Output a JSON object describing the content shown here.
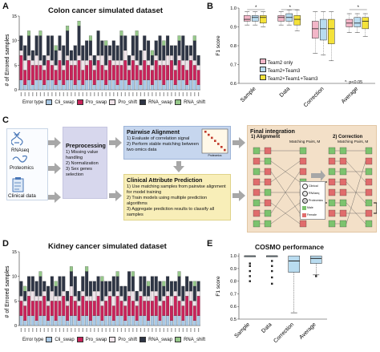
{
  "panels": {
    "A": "A",
    "B": "B",
    "C": "C",
    "D": "D",
    "E": "E"
  },
  "colors": {
    "cli_swap": "#a9c9e6",
    "pro_swap": "#c8235a",
    "pro_shift": "#f0e4ea",
    "rna_swap": "#2e3545",
    "rna_shift": "#96c88a",
    "team2": "#f3b6c8",
    "team23": "#b9dcf0",
    "team123": "#f4e23a"
  },
  "panel_a": {
    "title": "Colon cancer simulated dataset",
    "ylabel": "# of Errored samples",
    "error_type_label": "Error type",
    "legend": [
      "Cli_swap",
      "Pro_swap",
      "Pro_shift",
      "RNA_swap",
      "RNA_shift"
    ]
  },
  "panel_d": {
    "title": "Kidney cancer simulated dataset",
    "ylabel": "# of Errored samples",
    "error_type_label": "Error type",
    "legend": [
      "Cli_swap",
      "Pro_swap",
      "Pro_shift",
      "RNA_swap",
      "RNA_shift"
    ]
  },
  "panel_b": {
    "ylabel": "F1 score",
    "legend": [
      "Team2 only",
      "Team2+Team3",
      "Team2+Team1+Team3"
    ],
    "note": "*: p<0.05"
  },
  "panel_c": {
    "inputs": [
      "RNAseq",
      "Proteomics",
      "Clinical data"
    ],
    "preprocessing": {
      "title": "Preprocessing",
      "steps": [
        "1) Missing value handling",
        "2) Normalization",
        "3) Sex genes selection"
      ]
    },
    "pairwise": {
      "title": "Pairwise Alignment",
      "steps": [
        "1) Evaluate of correlation signal",
        "2) Perform stable matching between two omics data"
      ],
      "mini_x": "Proteomics",
      "mini_y": "RNAseq"
    },
    "clinical": {
      "title": "Clinical Attribute Prediction",
      "steps": [
        "1) Use matching samples from pairwise alignment for model training",
        "2) Train models using multiple prediction algorithms",
        "3) Aggregate prediction results to classify all samples"
      ]
    },
    "final": {
      "title": "Final integration",
      "alignment": "1) Alignment",
      "correction": "2) Correction",
      "matching": "Matching Pairs, M",
      "legend": [
        "Clinical",
        "RNAseq",
        "Proteomics",
        "Male",
        "Female"
      ]
    }
  },
  "panel_e": {
    "title": "COSMO performance",
    "ylabel": "F1 score"
  },
  "chart_data": [
    {
      "type": "bar",
      "title": "Colon cancer simulated dataset",
      "ylabel": "# of Errored samples",
      "ylim": [
        0,
        15
      ],
      "yticks": [
        0,
        5,
        10,
        15
      ],
      "stacked": true,
      "series_names": [
        "Cli_swap",
        "Pro_swap",
        "Pro_shift",
        "RNA_swap",
        "RNA_shift"
      ],
      "n_bars": 47,
      "values": [
        [
          2,
          5,
          1,
          3,
          0
        ],
        [
          1,
          3,
          2,
          3,
          0
        ],
        [
          2,
          4,
          1,
          4,
          1
        ],
        [
          1,
          4,
          1,
          2,
          0
        ],
        [
          2,
          3,
          2,
          4,
          0
        ],
        [
          2,
          3,
          1,
          5,
          1
        ],
        [
          1,
          3,
          1,
          2,
          0
        ],
        [
          2,
          4,
          1,
          4,
          0
        ],
        [
          2,
          3,
          1,
          5,
          0
        ],
        [
          1,
          3,
          1,
          3,
          1
        ],
        [
          2,
          4,
          2,
          3,
          0
        ],
        [
          1,
          3,
          1,
          4,
          0
        ],
        [
          2,
          4,
          1,
          5,
          1
        ],
        [
          2,
          3,
          1,
          2,
          0
        ],
        [
          1,
          4,
          1,
          3,
          0
        ],
        [
          2,
          4,
          1,
          6,
          1
        ],
        [
          1,
          3,
          2,
          3,
          0
        ],
        [
          2,
          3,
          1,
          4,
          0
        ],
        [
          2,
          4,
          1,
          3,
          1
        ],
        [
          1,
          3,
          1,
          2,
          0
        ],
        [
          2,
          4,
          1,
          5,
          0
        ],
        [
          2,
          3,
          2,
          3,
          0
        ],
        [
          1,
          3,
          1,
          4,
          1
        ],
        [
          2,
          4,
          1,
          2,
          0
        ],
        [
          2,
          3,
          1,
          4,
          0
        ],
        [
          1,
          4,
          1,
          3,
          0
        ],
        [
          2,
          3,
          1,
          5,
          1
        ],
        [
          2,
          4,
          2,
          3,
          0
        ],
        [
          1,
          3,
          1,
          2,
          0
        ],
        [
          2,
          4,
          1,
          4,
          0
        ],
        [
          2,
          3,
          1,
          5,
          1
        ],
        [
          1,
          3,
          1,
          3,
          0
        ],
        [
          2,
          4,
          2,
          3,
          0
        ],
        [
          2,
          3,
          1,
          4,
          0
        ],
        [
          1,
          3,
          1,
          2,
          1
        ],
        [
          2,
          4,
          1,
          3,
          0
        ],
        [
          2,
          3,
          1,
          5,
          0
        ],
        [
          1,
          4,
          1,
          3,
          1
        ],
        [
          2,
          3,
          2,
          4,
          0
        ],
        [
          2,
          4,
          1,
          2,
          0
        ],
        [
          1,
          3,
          1,
          4,
          0
        ],
        [
          2,
          4,
          1,
          3,
          1
        ],
        [
          2,
          3,
          1,
          5,
          0
        ],
        [
          1,
          3,
          2,
          3,
          0
        ],
        [
          2,
          4,
          1,
          2,
          0
        ],
        [
          2,
          3,
          1,
          4,
          1
        ],
        [
          1,
          3,
          1,
          2,
          0
        ]
      ]
    },
    {
      "type": "box",
      "ylabel": "F1 score",
      "ylim": [
        0.6,
        1.0
      ],
      "yticks": [
        0.6,
        0.7,
        0.8,
        0.9,
        1.0
      ],
      "categories": [
        "Sample",
        "Data",
        "Correction",
        "Average"
      ],
      "series": [
        {
          "name": "Team2 only",
          "boxes": [
            [
              0.91,
              0.93,
              0.94,
              0.96,
              0.98
            ],
            [
              0.91,
              0.93,
              0.95,
              0.96,
              0.98
            ],
            [
              0.76,
              0.84,
              0.89,
              0.93,
              0.98
            ],
            [
              0.87,
              0.9,
              0.92,
              0.94,
              0.97
            ]
          ]
        },
        {
          "name": "Team2+Team3",
          "boxes": [
            [
              0.91,
              0.93,
              0.95,
              0.96,
              0.98
            ],
            [
              0.91,
              0.93,
              0.95,
              0.97,
              0.99
            ],
            [
              0.75,
              0.83,
              0.89,
              0.94,
              0.98
            ],
            [
              0.87,
              0.9,
              0.92,
              0.95,
              0.97
            ]
          ]
        },
        {
          "name": "Team2+Team1+Team3",
          "boxes": [
            [
              0.9,
              0.92,
              0.95,
              0.96,
              0.98
            ],
            [
              0.88,
              0.91,
              0.94,
              0.96,
              0.99
            ],
            [
              0.72,
              0.81,
              0.89,
              0.94,
              0.98
            ],
            [
              0.85,
              0.89,
              0.93,
              0.95,
              0.97
            ]
          ]
        }
      ],
      "significance": [
        "*",
        "*",
        "",
        "*"
      ],
      "note": "*: p<0.05"
    },
    {
      "type": "bar",
      "title": "Kidney cancer simulated dataset",
      "ylabel": "# of Errored samples",
      "ylim": [
        0,
        15
      ],
      "yticks": [
        0,
        5,
        10,
        15
      ],
      "stacked": true,
      "series_names": [
        "Cli_swap",
        "Pro_swap",
        "Pro_shift",
        "RNA_swap",
        "RNA_shift"
      ],
      "n_bars": 47,
      "values": [
        [
          2,
          3,
          1,
          3,
          0
        ],
        [
          1,
          3,
          1,
          2,
          1
        ],
        [
          2,
          4,
          1,
          3,
          0
        ],
        [
          2,
          3,
          2,
          3,
          0
        ],
        [
          1,
          4,
          1,
          3,
          0
        ],
        [
          2,
          3,
          1,
          4,
          1
        ],
        [
          2,
          4,
          1,
          2,
          0
        ],
        [
          1,
          3,
          1,
          3,
          0
        ],
        [
          2,
          3,
          2,
          3,
          0
        ],
        [
          1,
          4,
          1,
          2,
          1
        ],
        [
          2,
          3,
          1,
          4,
          0
        ],
        [
          2,
          4,
          1,
          3,
          0
        ],
        [
          1,
          3,
          1,
          2,
          0
        ],
        [
          2,
          4,
          2,
          3,
          1
        ],
        [
          2,
          3,
          1,
          4,
          0
        ],
        [
          1,
          3,
          1,
          2,
          0
        ],
        [
          2,
          4,
          1,
          3,
          0
        ],
        [
          2,
          3,
          1,
          5,
          1
        ],
        [
          1,
          4,
          1,
          3,
          0
        ],
        [
          2,
          3,
          2,
          2,
          0
        ],
        [
          2,
          4,
          1,
          3,
          0
        ],
        [
          1,
          3,
          1,
          4,
          1
        ],
        [
          2,
          3,
          1,
          3,
          0
        ],
        [
          2,
          4,
          1,
          2,
          0
        ],
        [
          1,
          3,
          2,
          4,
          0
        ],
        [
          2,
          4,
          1,
          3,
          1
        ],
        [
          2,
          3,
          1,
          2,
          0
        ],
        [
          1,
          3,
          1,
          3,
          0
        ],
        [
          2,
          4,
          1,
          4,
          0
        ],
        [
          2,
          3,
          2,
          3,
          1
        ],
        [
          1,
          3,
          1,
          2,
          0
        ],
        [
          2,
          4,
          1,
          3,
          0
        ],
        [
          2,
          3,
          1,
          4,
          0
        ],
        [
          1,
          4,
          1,
          2,
          1
        ],
        [
          2,
          3,
          2,
          3,
          0
        ],
        [
          2,
          4,
          1,
          3,
          0
        ],
        [
          1,
          3,
          1,
          4,
          0
        ],
        [
          2,
          3,
          1,
          2,
          1
        ],
        [
          2,
          4,
          1,
          3,
          0
        ],
        [
          1,
          3,
          2,
          3,
          0
        ],
        [
          2,
          4,
          1,
          2,
          0
        ],
        [
          2,
          3,
          1,
          4,
          1
        ],
        [
          1,
          3,
          1,
          3,
          0
        ],
        [
          2,
          4,
          1,
          3,
          0
        ],
        [
          2,
          3,
          2,
          2,
          0
        ],
        [
          1,
          3,
          1,
          3,
          1
        ],
        [
          2,
          4,
          1,
          2,
          0
        ]
      ]
    },
    {
      "type": "box",
      "title": "COSMO performance",
      "ylabel": "F1 score",
      "ylim": [
        0.5,
        1.02
      ],
      "yticks": [
        0.5,
        0.6,
        0.7,
        0.8,
        0.9,
        1.0
      ],
      "categories": [
        "Sample",
        "Data",
        "Correction",
        "Average"
      ],
      "boxes": [
        [
          0.995,
          0.995,
          1.0,
          1.0,
          1.0
        ],
        [
          0.995,
          0.995,
          1.0,
          1.0,
          1.0
        ],
        [
          0.55,
          0.87,
          0.96,
          1.0,
          1.0
        ],
        [
          0.85,
          0.94,
          0.98,
          1.0,
          1.0
        ]
      ],
      "outliers": [
        [
          0.94,
          0.92,
          0.88,
          0.84,
          0.8
        ],
        [
          0.96,
          0.92,
          0.88,
          0.83,
          0.78
        ],
        [],
        [
          0.84
        ]
      ]
    }
  ]
}
